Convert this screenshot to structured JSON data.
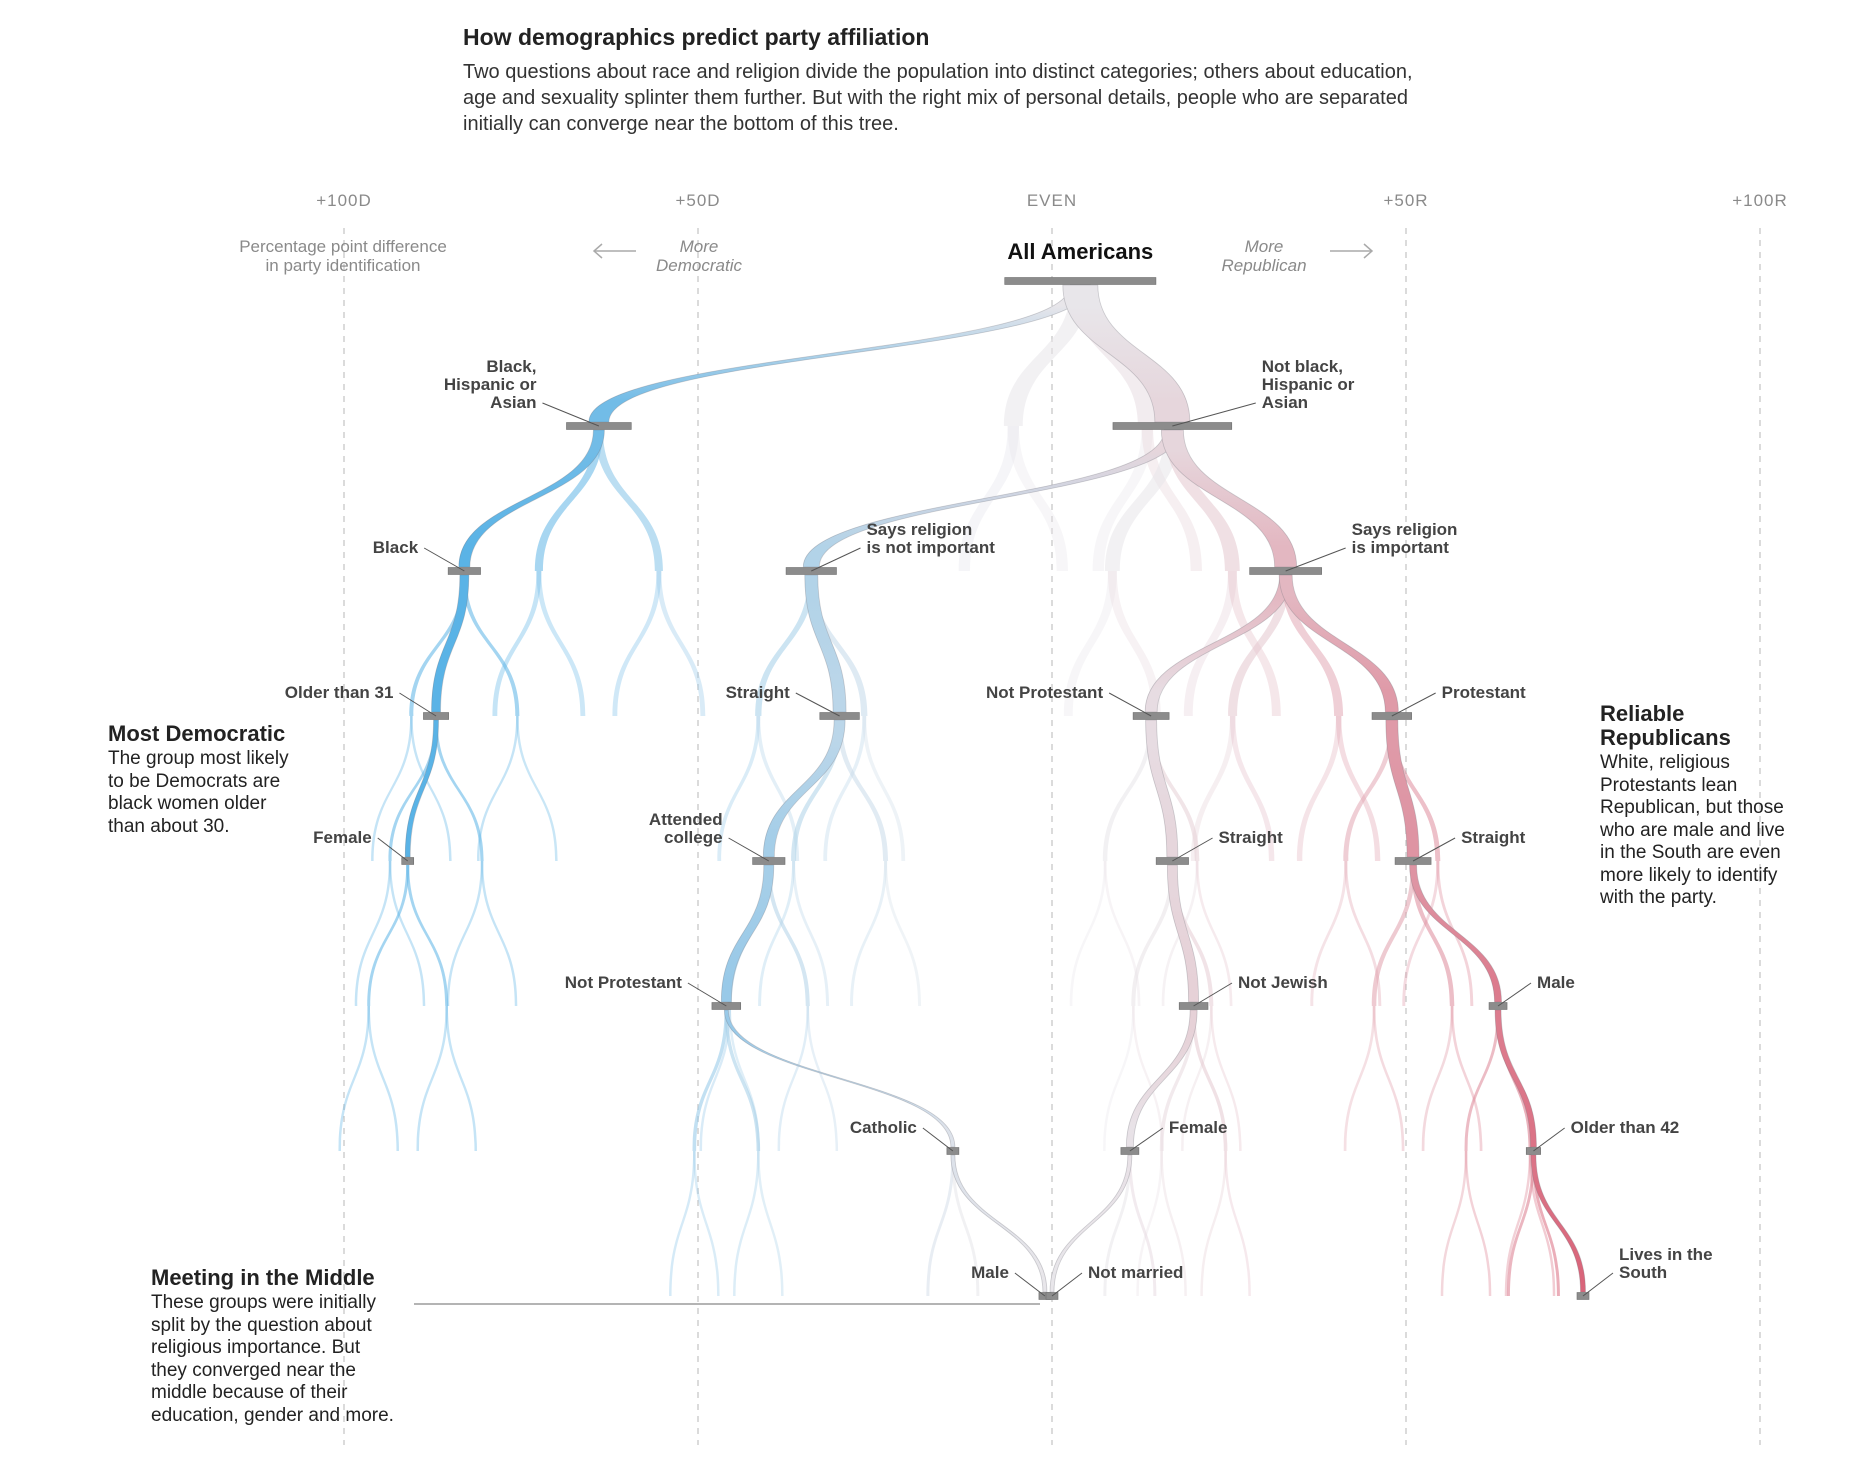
{
  "header": {
    "title": "How demographics predict party affiliation",
    "subtitle": "Two questions about race and religion divide the population into distinct categories; others about education, age and sexuality splinter them further. But with the right mix of personal details, people who are separated initially can converge near the bottom of this tree."
  },
  "scale": {
    "ticks": [
      "+100D",
      "+50D",
      "EVEN",
      "+50R",
      "+100R"
    ],
    "axis_note_line1": "Percentage point difference",
    "axis_note_line2": "in party identification",
    "left_dir_line1": "More",
    "left_dir_line2": "Democratic",
    "right_dir_line1": "More",
    "right_dir_line2": "Republican"
  },
  "colors": {
    "democratic": "#5ab3e6",
    "republican": "#d9657a",
    "neutral": "#e8e6ea",
    "node": "#8c8c8c"
  },
  "nodes": [
    {
      "id": "all",
      "lines": [
        "All Americans"
      ],
      "lean": 4,
      "level": 0,
      "weight": 42,
      "labelSide": "above"
    },
    {
      "id": "minority",
      "lines": [
        "Black,",
        "Hispanic or",
        "Asian"
      ],
      "lean": -64,
      "level": 1,
      "weight": 18,
      "labelSide": "left"
    },
    {
      "id": "white",
      "lines": [
        "Not black,",
        "Hispanic or",
        "Asian"
      ],
      "lean": 17,
      "level": 1,
      "weight": 33,
      "labelSide": "right"
    },
    {
      "id": "black",
      "lines": [
        "Black"
      ],
      "lean": -83,
      "level": 2,
      "weight": 9,
      "labelSide": "left"
    },
    {
      "id": "notrelig",
      "lines": [
        "Says religion",
        "is not important"
      ],
      "lean": -34,
      "level": 2,
      "weight": 14,
      "labelSide": "right"
    },
    {
      "id": "relig",
      "lines": [
        "Says religion",
        "is important"
      ],
      "lean": 33,
      "level": 2,
      "weight": 20,
      "labelSide": "right"
    },
    {
      "id": "older31",
      "lines": [
        "Older than 31"
      ],
      "lean": -87,
      "level": 3,
      "weight": 7,
      "labelSide": "left"
    },
    {
      "id": "straight1",
      "lines": [
        "Straight"
      ],
      "lean": -30,
      "level": 3,
      "weight": 11,
      "labelSide": "left"
    },
    {
      "id": "notprot1",
      "lines": [
        "Not Protestant"
      ],
      "lean": 14,
      "level": 3,
      "weight": 10,
      "labelSide": "left"
    },
    {
      "id": "protestant",
      "lines": [
        "Protestant"
      ],
      "lean": 48,
      "level": 3,
      "weight": 11,
      "labelSide": "right"
    },
    {
      "id": "female1",
      "lines": [
        "Female"
      ],
      "lean": -91,
      "level": 4,
      "weight": 3,
      "labelSide": "left"
    },
    {
      "id": "college",
      "lines": [
        "Attended",
        "college"
      ],
      "lean": -40,
      "level": 4,
      "weight": 9,
      "labelSide": "left"
    },
    {
      "id": "straight2",
      "lines": [
        "Straight"
      ],
      "lean": 17,
      "level": 4,
      "weight": 9,
      "labelSide": "right"
    },
    {
      "id": "straight3",
      "lines": [
        "Straight"
      ],
      "lean": 51,
      "level": 4,
      "weight": 10,
      "labelSide": "right"
    },
    {
      "id": "notprot2",
      "lines": [
        "Not Protestant"
      ],
      "lean": -46,
      "level": 5,
      "weight": 8,
      "labelSide": "left"
    },
    {
      "id": "notjewish",
      "lines": [
        "Not Jewish"
      ],
      "lean": 20,
      "level": 5,
      "weight": 8,
      "labelSide": "right"
    },
    {
      "id": "male1",
      "lines": [
        "Male"
      ],
      "lean": 63,
      "level": 5,
      "weight": 5,
      "labelSide": "right"
    },
    {
      "id": "catholic",
      "lines": [
        "Catholic"
      ],
      "lean": -14,
      "level": 6,
      "weight": 2,
      "labelSide": "left"
    },
    {
      "id": "female2",
      "lines": [
        "Female"
      ],
      "lean": 11,
      "level": 6,
      "weight": 5,
      "labelSide": "right"
    },
    {
      "id": "older42",
      "lines": [
        "Older than 42"
      ],
      "lean": 68,
      "level": 6,
      "weight": 4,
      "labelSide": "right"
    },
    {
      "id": "male2",
      "lines": [
        "Male"
      ],
      "lean": -1,
      "level": 7,
      "weight": 2,
      "labelSide": "left"
    },
    {
      "id": "notmarried",
      "lines": [
        "Not married"
      ],
      "lean": 0,
      "level": 7,
      "weight": 2,
      "labelSide": "right"
    },
    {
      "id": "south",
      "lines": [
        "Lives in the",
        "South"
      ],
      "lean": 75,
      "level": 7,
      "weight": 3,
      "labelSide": "right"
    }
  ],
  "highlight_links": [
    [
      "all",
      "minority"
    ],
    [
      "all",
      "white"
    ],
    [
      "minority",
      "black"
    ],
    [
      "white",
      "notrelig"
    ],
    [
      "white",
      "relig"
    ],
    [
      "black",
      "older31"
    ],
    [
      "notrelig",
      "straight1"
    ],
    [
      "relig",
      "notprot1"
    ],
    [
      "relig",
      "protestant"
    ],
    [
      "older31",
      "female1"
    ],
    [
      "straight1",
      "college"
    ],
    [
      "notprot1",
      "straight2"
    ],
    [
      "protestant",
      "straight3"
    ],
    [
      "college",
      "notprot2"
    ],
    [
      "straight2",
      "notjewish"
    ],
    [
      "straight3",
      "male1"
    ],
    [
      "notprot2",
      "catholic"
    ],
    [
      "notjewish",
      "female2"
    ],
    [
      "male1",
      "older42"
    ],
    [
      "catholic",
      "male2"
    ],
    [
      "female2",
      "notmarried"
    ],
    [
      "older42",
      "south"
    ]
  ],
  "annotations": {
    "most_dem": {
      "title": "Most Democratic",
      "body": "The group most likely to be Democrats are black women older than about 30."
    },
    "reliable_rep": {
      "title": "Reliable Republicans",
      "body": "White, religious Protestants lean Republican, but those who are male and live in the South are even more likely to identify with the party."
    },
    "middle": {
      "title": "Meeting in the Middle",
      "body": "These groups were initially split by the question about religious importance. But they converged near the middle because of their education, gender and more."
    }
  }
}
